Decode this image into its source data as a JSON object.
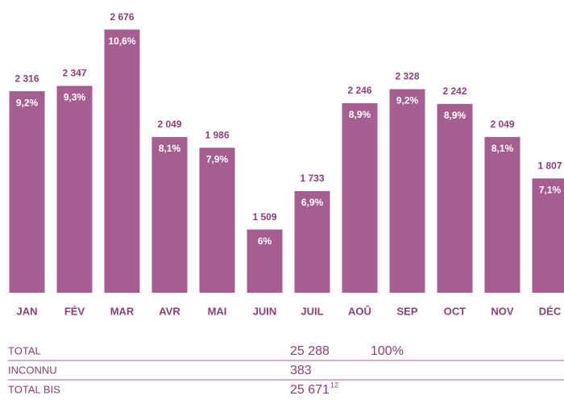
{
  "chart_data": {
    "type": "bar",
    "categories": [
      "JAN",
      "FÉV",
      "MAR",
      "AVR",
      "MAI",
      "JUIN",
      "JUIL",
      "AOÛ",
      "SEP",
      "OCT",
      "NOV",
      "DÉC"
    ],
    "values": [
      2316,
      2347,
      2676,
      2049,
      1986,
      1509,
      1733,
      2246,
      2328,
      2242,
      2049,
      1807
    ],
    "value_labels": [
      "2 316",
      "2 347",
      "2 676",
      "2 049",
      "1 986",
      "1 509",
      "1 733",
      "2 246",
      "2 328",
      "2 242",
      "2 049",
      "1 807"
    ],
    "shares": [
      9.2,
      9.3,
      10.6,
      8.1,
      7.9,
      6,
      6.9,
      8.9,
      9.2,
      8.9,
      8.1,
      7.1
    ],
    "share_labels": [
      "9,2%",
      "9,3%",
      "10,6%",
      "8,1%",
      "7,9%",
      "6%",
      "6,9%",
      "8,9%",
      "9,2%",
      "8,9%",
      "8,1%",
      "7,1%"
    ],
    "color": "#a65e91",
    "ylim": [
      1140,
      2820
    ]
  },
  "table": {
    "rows": [
      {
        "label": "TOTAL",
        "value": "25 288",
        "share": "100%"
      },
      {
        "label": "INCONNU",
        "value": "383"
      },
      {
        "label": "TOTAL BIS",
        "value": "25 671",
        "note": "12"
      }
    ]
  }
}
